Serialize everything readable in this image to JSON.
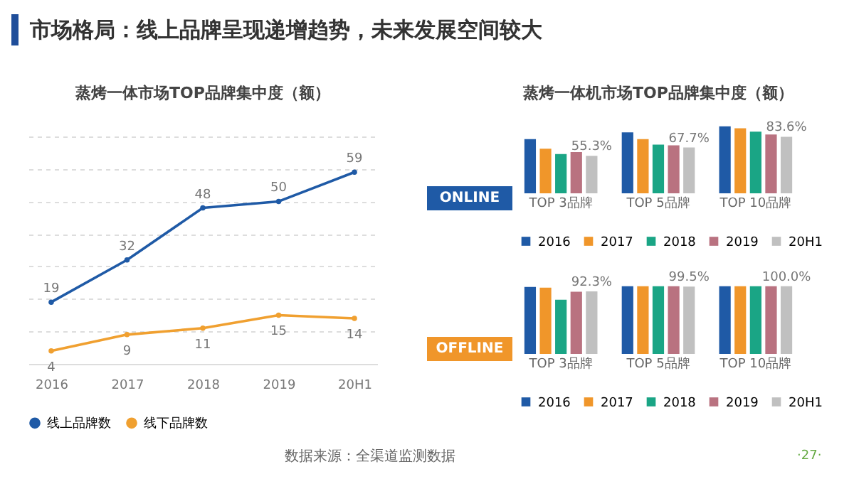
{
  "chart_data": [
    {
      "type": "line",
      "title": "蒸烤一体市场TOP品牌集中度（额）",
      "annotations": [
        "市场格局：线上品牌呈现递增趋势，未来发展空间较大",
        "数据来源：全渠道监测数据",
        "·27·"
      ],
      "categories": [
        "2016",
        "2017",
        "2018",
        "2019",
        "20H1"
      ],
      "series": [
        {
          "name": "线上品牌数",
          "color": "#1f5aa6",
          "values": [
            19,
            32,
            48,
            50,
            59
          ]
        },
        {
          "name": "线下品牌数",
          "color": "#f0a030",
          "values": [
            4,
            9,
            11,
            15,
            14
          ]
        }
      ],
      "ylim": [
        0,
        70
      ],
      "yticks": [
        {
          "value": 0,
          "label": null
        },
        {
          "value": 10,
          "label": null
        },
        {
          "value": 20,
          "label": null
        },
        {
          "value": 30,
          "label": null
        },
        {
          "value": 40,
          "label": null
        },
        {
          "value": 50,
          "label": null
        },
        {
          "value": 60,
          "label": null
        },
        {
          "value": 70,
          "label": null
        }
      ],
      "tick_labels": "x",
      "grid": "y",
      "data_labels": true,
      "marker": "circle",
      "legend": "bottom"
    },
    {
      "type": "bar",
      "title": "蒸烤一体机市场TOP品牌集中度（额）",
      "ylabel": "ONLINE",
      "categories": [
        "TOP 3品牌",
        "TOP 5品牌",
        "TOP 10品牌"
      ],
      "series": [
        {
          "name": "2016",
          "color": "#1f5aa6",
          "values": [
            80,
            90,
            99
          ]
        },
        {
          "name": "2017",
          "color": "#f0962a",
          "values": [
            66,
            80,
            96
          ]
        },
        {
          "name": "2018",
          "color": "#1aa585",
          "values": [
            58,
            72,
            91
          ]
        },
        {
          "name": "2019",
          "color": "#b97280",
          "values": [
            61,
            71,
            87
          ]
        },
        {
          "name": "20H1",
          "color": "#c0c0c0",
          "values": [
            55.3,
            67.7,
            83.6
          ],
          "value_labels": [
            "55.3%",
            "67.7%",
            "83.6%"
          ]
        }
      ],
      "ylim": [
        0,
        105
      ],
      "tick_labels": "x",
      "legend": "bottom"
    },
    {
      "type": "bar",
      "ylabel": "OFFLINE",
      "categories": [
        "TOP 3品牌",
        "TOP 5品牌",
        "TOP 10品牌"
      ],
      "series": [
        {
          "name": "2016",
          "color": "#1f5aa6",
          "values": [
            99,
            100,
            100
          ]
        },
        {
          "name": "2017",
          "color": "#f0962a",
          "values": [
            98,
            100,
            100
          ]
        },
        {
          "name": "2018",
          "color": "#1aa585",
          "values": [
            80,
            100,
            100
          ]
        },
        {
          "name": "2019",
          "color": "#b97280",
          "values": [
            92,
            100,
            100
          ]
        },
        {
          "name": "20H1",
          "color": "#c0c0c0",
          "values": [
            92.3,
            99.5,
            100.0
          ],
          "value_labels": [
            "92.3%",
            "99.5%",
            "100.0%"
          ]
        }
      ],
      "ylim": [
        0,
        105
      ],
      "tick_labels": "x",
      "legend": "bottom"
    }
  ]
}
